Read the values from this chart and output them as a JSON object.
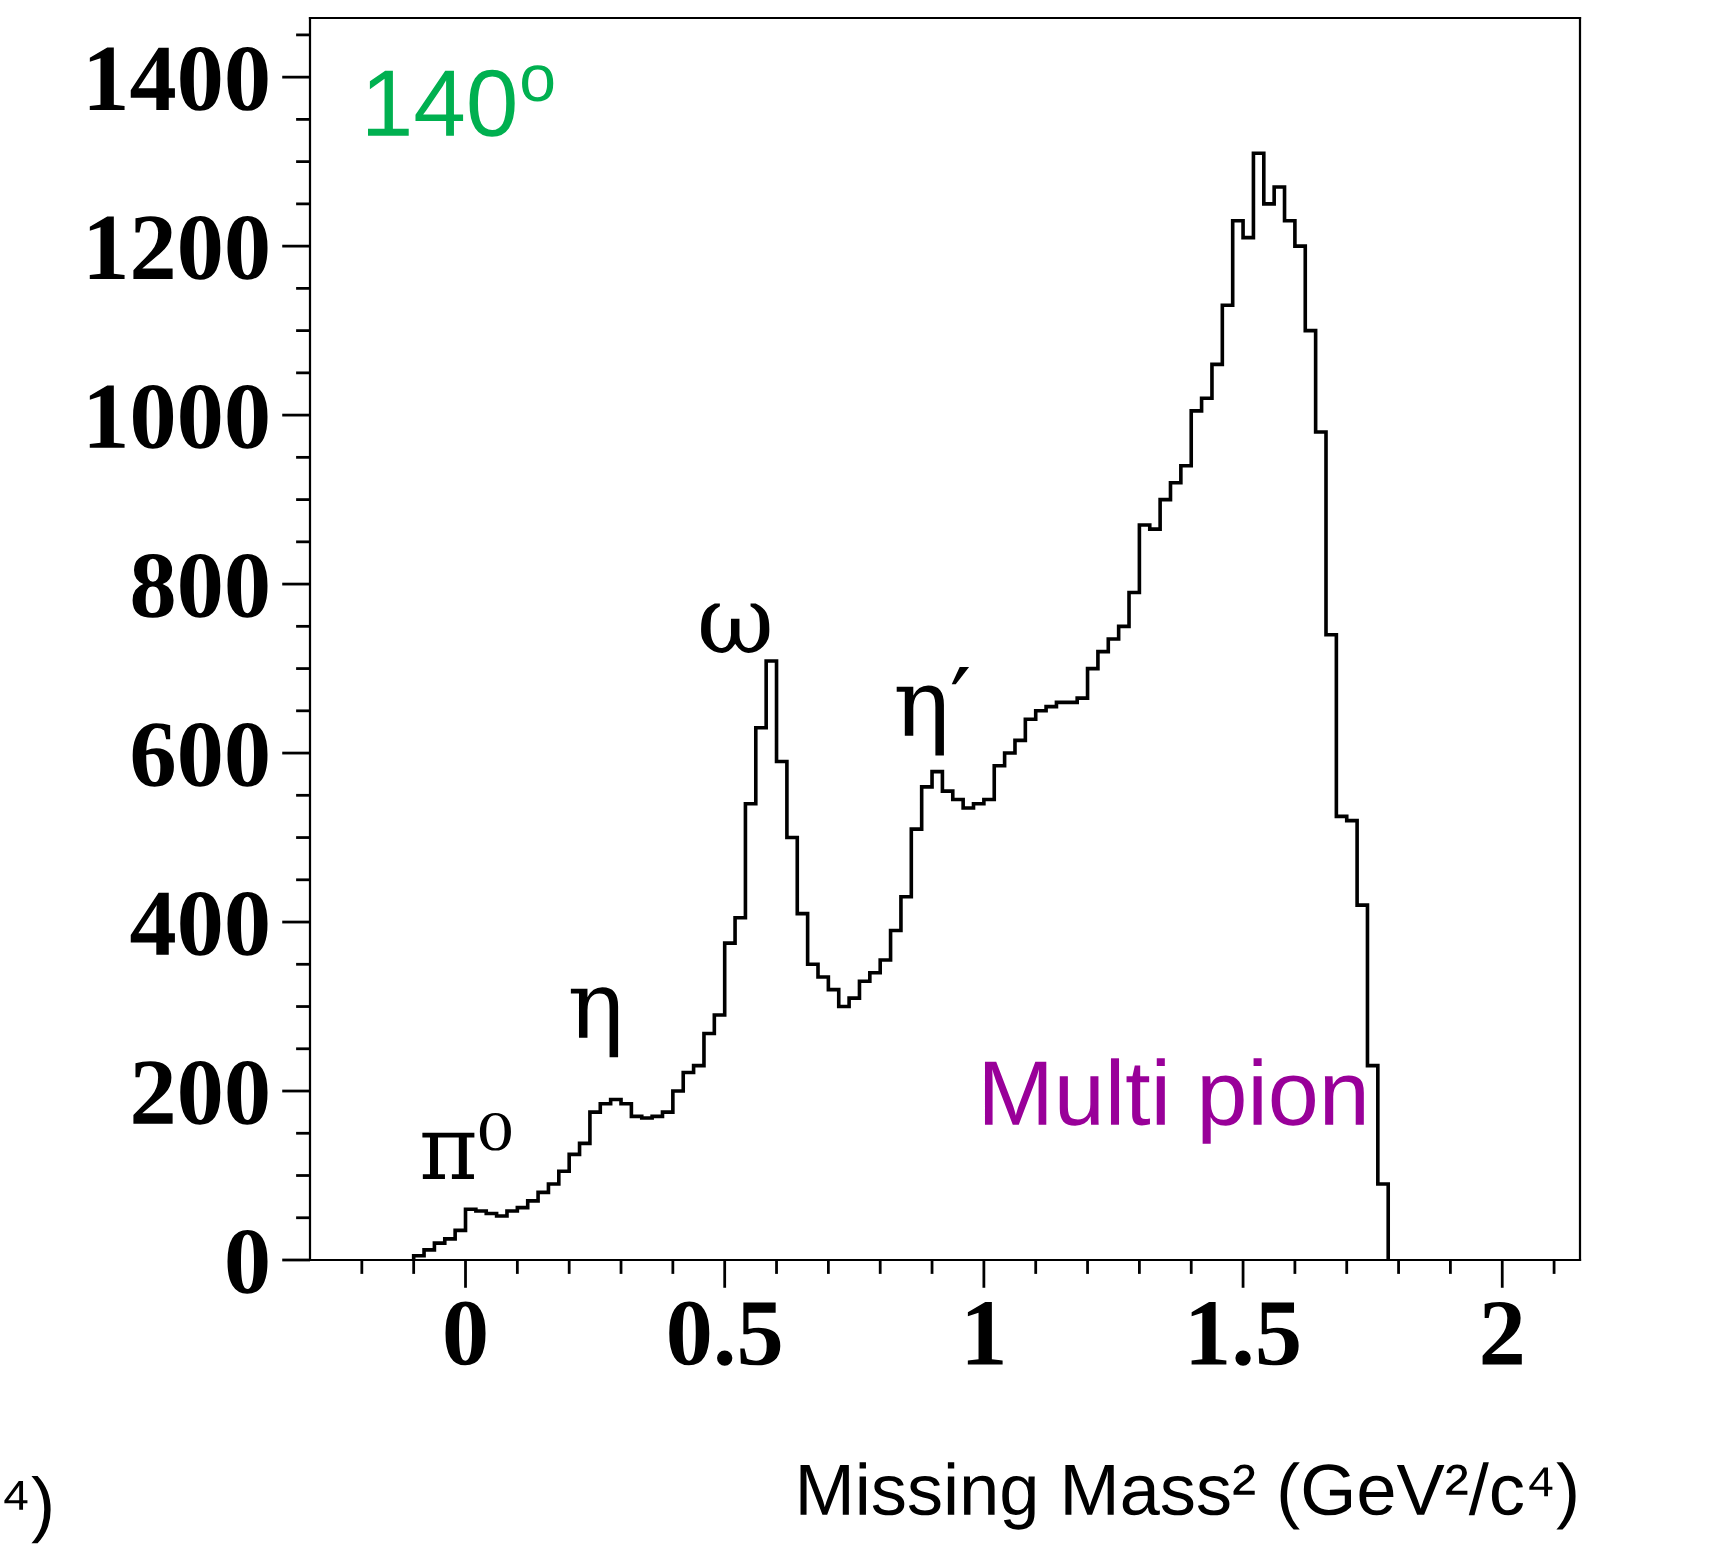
{
  "chart_data": {
    "type": "histogram",
    "xlabel": "Missing Mass² (GeV²/c⁴)",
    "color": "#000000",
    "bins": [
      -0.1,
      -0.08,
      -0.06,
      -0.04,
      -0.02,
      0,
      0.02,
      0.04,
      0.06,
      0.08,
      0.1,
      0.12,
      0.14,
      0.16,
      0.18,
      0.2,
      0.22,
      0.24,
      0.26,
      0.28,
      0.3,
      0.32,
      0.34,
      0.36,
      0.38,
      0.4,
      0.42,
      0.44,
      0.46,
      0.48,
      0.5,
      0.52,
      0.54,
      0.56,
      0.58,
      0.6,
      0.62,
      0.64,
      0.66,
      0.68,
      0.7,
      0.72,
      0.74,
      0.76,
      0.78,
      0.8,
      0.82,
      0.84,
      0.86,
      0.88,
      0.9,
      0.92,
      0.94,
      0.96,
      0.98,
      1,
      1.02,
      1.04,
      1.06,
      1.08,
      1.1,
      1.12,
      1.14,
      1.16,
      1.18,
      1.2,
      1.22,
      1.24,
      1.26,
      1.28,
      1.3,
      1.32,
      1.34,
      1.36,
      1.38,
      1.4,
      1.42,
      1.44,
      1.46,
      1.48,
      1.5,
      1.52,
      1.54,
      1.56,
      1.58,
      1.6,
      1.62,
      1.64,
      1.66,
      1.68,
      1.7,
      1.72,
      1.74,
      1.76,
      1.78
    ],
    "values": [
      5,
      12,
      20,
      25,
      35,
      60,
      58,
      55,
      52,
      58,
      62,
      70,
      80,
      90,
      105,
      125,
      138,
      175,
      185,
      190,
      185,
      170,
      168,
      170,
      175,
      200,
      222,
      230,
      268,
      290,
      375,
      405,
      540,
      630,
      709,
      590,
      500,
      410,
      350,
      335,
      320,
      300,
      310,
      330,
      340,
      355,
      390,
      430,
      510,
      560,
      578,
      555,
      545,
      535,
      540,
      545,
      585,
      600,
      615,
      640,
      650,
      655,
      660,
      660,
      665,
      700,
      720,
      735,
      750,
      790,
      870,
      865,
      900,
      920,
      940,
      1005,
      1020,
      1060,
      1130,
      1230,
      1210,
      1310,
      1250,
      1270,
      1230,
      1200,
      1100,
      980,
      740,
      525,
      520,
      420,
      230,
      90
    ],
    "xlim": [
      -0.3,
      2.15
    ],
    "xticks": [
      {
        "value": -0.2,
        "label": null
      },
      {
        "value": -0.1,
        "label": null
      },
      0,
      {
        "value": 0.1,
        "label": null
      },
      {
        "value": 0.2,
        "label": null
      },
      {
        "value": 0.3,
        "label": null
      },
      {
        "value": 0.4,
        "label": null
      },
      0.5,
      {
        "value": 0.6,
        "label": null
      },
      {
        "value": 0.7,
        "label": null
      },
      {
        "value": 0.8,
        "label": null
      },
      {
        "value": 0.9,
        "label": null
      },
      1,
      {
        "value": 1.1,
        "label": null
      },
      {
        "value": 1.2,
        "label": null
      },
      {
        "value": 1.3,
        "label": null
      },
      {
        "value": 1.4,
        "label": null
      },
      1.5,
      {
        "value": 1.6,
        "label": null
      },
      {
        "value": 1.7,
        "label": null
      },
      {
        "value": 1.8,
        "label": null
      },
      {
        "value": 1.9,
        "label": null
      },
      2,
      {
        "value": 2.1,
        "label": null
      }
    ],
    "ylim": [
      0,
      1470
    ],
    "yticks": [
      0,
      {
        "value": 50,
        "label": null
      },
      {
        "value": 100,
        "label": null
      },
      {
        "value": 150,
        "label": null
      },
      200,
      {
        "value": 250,
        "label": null
      },
      {
        "value": 300,
        "label": null
      },
      {
        "value": 350,
        "label": null
      },
      400,
      {
        "value": 450,
        "label": null
      },
      {
        "value": 500,
        "label": null
      },
      {
        "value": 550,
        "label": null
      },
      600,
      {
        "value": 650,
        "label": null
      },
      {
        "value": 700,
        "label": null
      },
      {
        "value": 750,
        "label": null
      },
      800,
      {
        "value": 850,
        "label": null
      },
      {
        "value": 900,
        "label": null
      },
      {
        "value": 950,
        "label": null
      },
      1000,
      {
        "value": 1050,
        "label": null
      },
      {
        "value": 1100,
        "label": null
      },
      {
        "value": 1150,
        "label": null
      },
      1200,
      {
        "value": 1250,
        "label": null
      },
      {
        "value": 1300,
        "label": null
      },
      {
        "value": 1350,
        "label": null
      },
      1400,
      {
        "value": 1450,
        "label": null
      }
    ],
    "grid": false,
    "annotations": [
      "140$^{o}$",
      "⁴)",
      "π⁰",
      "η",
      "ω",
      "η′",
      "Multi pion"
    ]
  }
}
